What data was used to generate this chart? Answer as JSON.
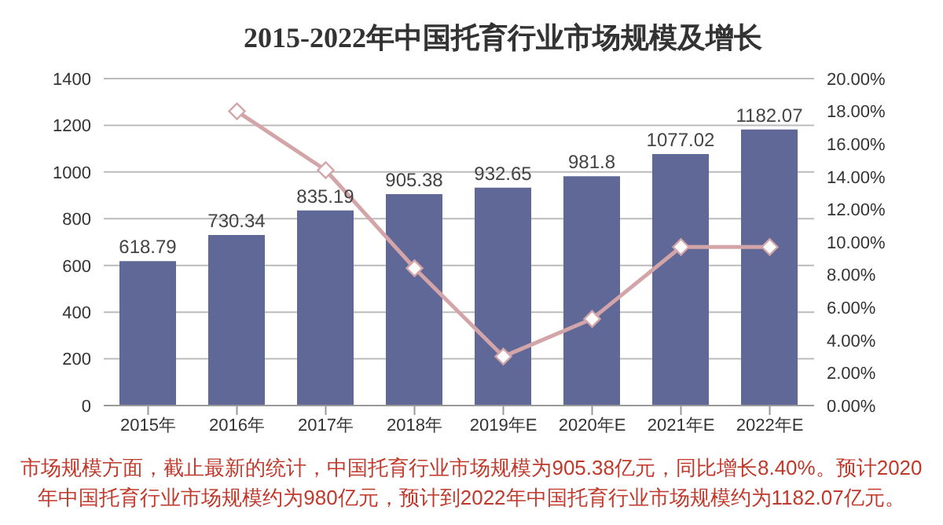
{
  "chart_data": {
    "type": "bar",
    "title": "2015-2022年中国托育行业市场规模及增长",
    "categories": [
      "2015年",
      "2016年",
      "2017年",
      "2018年",
      "2019年E",
      "2020年E",
      "2021年E",
      "2022年E"
    ],
    "series": [
      {
        "color": "#5f6896",
        "values": [
          618.79,
          730.34,
          835.19,
          905.38,
          932.65,
          981.8,
          1077.02,
          1182.07
        ],
        "data_labels": true
      },
      {
        "type": "line",
        "axis": "y2",
        "color": "#d4a5a8",
        "marker": "diamond",
        "values": [
          null,
          18.0,
          14.4,
          8.4,
          3.0,
          5.3,
          9.7,
          9.7
        ]
      }
    ],
    "ylim": [
      0,
      1400
    ],
    "yticks": [
      0,
      200,
      400,
      600,
      800,
      1000,
      1200,
      1400
    ],
    "y2lim": [
      0,
      20
    ],
    "y2ticks": [
      {
        "value": 0,
        "label": "0.00%"
      },
      {
        "value": 2,
        "label": "2.00%"
      },
      {
        "value": 4,
        "label": "4.00%"
      },
      {
        "value": 6,
        "label": "6.00%"
      },
      {
        "value": 8,
        "label": "8.00%"
      },
      {
        "value": 10,
        "label": "10.00%"
      },
      {
        "value": 12,
        "label": "12.00%"
      },
      {
        "value": 14,
        "label": "14.00%"
      },
      {
        "value": 16,
        "label": "16.00%"
      },
      {
        "value": 18,
        "label": "18.00%"
      },
      {
        "value": 20,
        "label": "20.00%"
      }
    ],
    "grid": "y",
    "legend": false,
    "annotations": [
      "市场规模方面，截止最新的统计，中国托育行业市场规模为905.38亿元，同比增长8.40%。预计2020年中国托育行业市场规模约为980亿元，预计到2022年中国托育行业市场规模约为1182.07亿元。"
    ]
  }
}
